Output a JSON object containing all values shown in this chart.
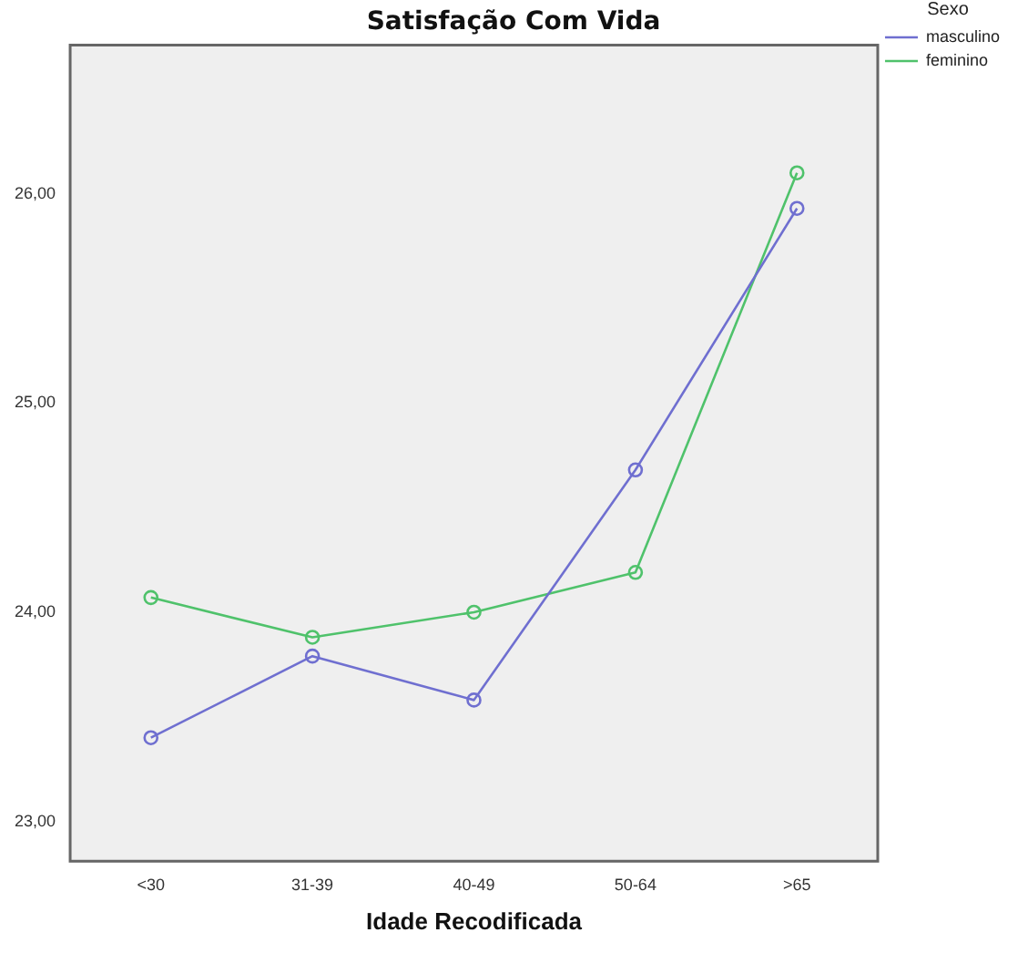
{
  "chart_data": {
    "type": "line",
    "title": "Satisfação Com Vida",
    "xlabel": "Idade Recodificada",
    "legend_title": "Sexo",
    "categories": [
      "<30",
      "31-39",
      "40-49",
      "50-64",
      ">65"
    ],
    "series": [
      {
        "name": "masculino",
        "color": "#6f6fd0",
        "values": [
          23.4,
          23.79,
          23.58,
          24.68,
          25.93
        ]
      },
      {
        "name": "feminino",
        "color": "#4fc26b",
        "values": [
          24.07,
          23.88,
          24.0,
          24.19,
          26.1
        ]
      }
    ],
    "ylim": [
      22.81,
      26.71
    ],
    "yticks": [
      {
        "value": 23,
        "label": "23,00"
      },
      {
        "value": 24,
        "label": "24,00"
      },
      {
        "value": 25,
        "label": "25,00"
      },
      {
        "value": 26,
        "label": "26,00"
      }
    ],
    "grid": false,
    "legend": "top right",
    "marker": "circle",
    "line_style": "solid"
  }
}
